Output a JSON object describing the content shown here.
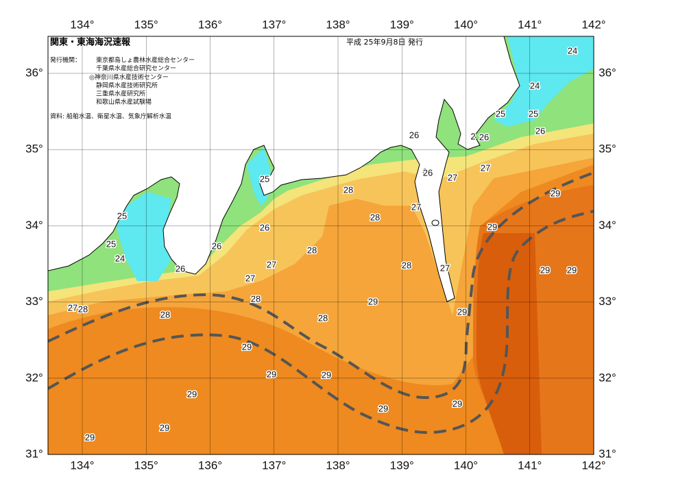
{
  "header": {
    "title": "関東・東海海況速報",
    "date": "平成 25年9月8日 発行",
    "issuer_label": "発行機関：",
    "issuers": [
      "東京都島しょ農林水産総合センター",
      "千葉県水産総合研究センター",
      "◎神奈川県水産技術センター",
      "静岡県水産技術研究所",
      "三重県水産研究所",
      "和歌山県水産試験場"
    ],
    "source": "資料: 船舶水温、衛星水温、気象庁解析水温"
  },
  "map": {
    "lon_labels": [
      "134°",
      "135°",
      "136°",
      "137°",
      "138°",
      "139°",
      "140°",
      "141°",
      "142°"
    ],
    "lat_labels": [
      "36°",
      "35°",
      "34°",
      "33°",
      "32°",
      "31°"
    ],
    "contour_labels": [
      "24",
      "24",
      "25",
      "25",
      "26",
      "2",
      "26",
      "26",
      "27",
      "26",
      "27",
      "28",
      "25",
      "29",
      "27",
      "28",
      "25",
      "26",
      "29",
      "25",
      "26",
      "28",
      "24",
      "27",
      "28",
      "27",
      "26",
      "29",
      "29",
      "27",
      "28",
      "29",
      "27",
      "28",
      "29",
      "28",
      "28",
      "29",
      "29",
      "29",
      "29",
      "29",
      "29",
      "29",
      "29"
    ]
  }
}
